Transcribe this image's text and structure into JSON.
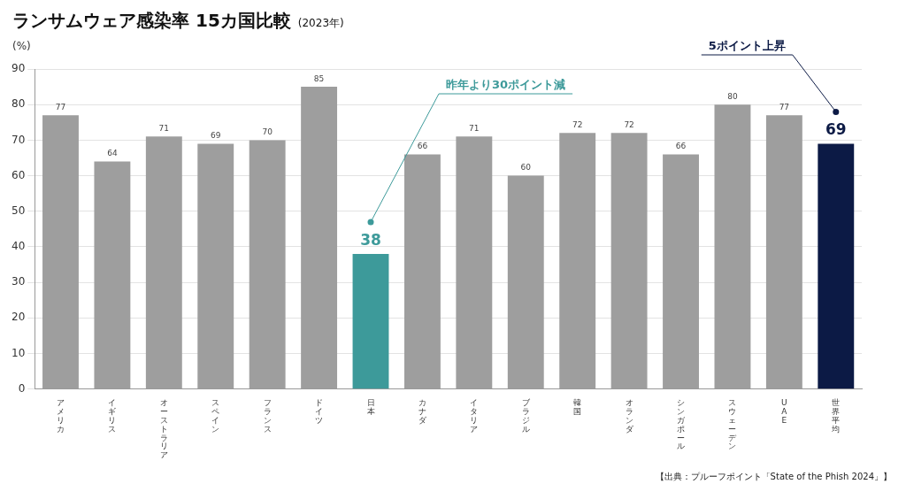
{
  "chart_data": {
    "type": "bar",
    "title": "ランサムウェア感染率 15カ国比較",
    "subtitle": "(2023年)",
    "y_label": "(%)",
    "categories": [
      "アメリカ",
      "イギリス",
      "オーストラリア",
      "スペイン",
      "フランス",
      "ドイツ",
      "日本",
      "カナダ",
      "イタリア",
      "ブラジル",
      "韓国",
      "オランダ",
      "シンガポール",
      "スウェーデン",
      "UAE",
      "世界平均"
    ],
    "values": [
      77,
      64,
      71,
      69,
      70,
      85,
      38,
      66,
      71,
      60,
      72,
      72,
      66,
      80,
      77,
      69
    ],
    "colors": [
      "#9e9e9e",
      "#9e9e9e",
      "#9e9e9e",
      "#9e9e9e",
      "#9e9e9e",
      "#9e9e9e",
      "#3d9a9a",
      "#9e9e9e",
      "#9e9e9e",
      "#9e9e9e",
      "#9e9e9e",
      "#9e9e9e",
      "#9e9e9e",
      "#9e9e9e",
      "#9e9e9e",
      "#0c1a45"
    ],
    "ylim": [
      0,
      90
    ],
    "yticks": [
      0,
      10,
      20,
      30,
      40,
      50,
      60,
      70,
      80,
      90
    ],
    "grid": true,
    "data_labels": true,
    "annotations": [
      {
        "category": "日本",
        "text": "昨年より30ポイント減"
      },
      {
        "category": "世界平均",
        "text": "5ポイント上昇"
      }
    ],
    "source": "【出典：プルーフポイント「State of the Phish 2024」】"
  }
}
